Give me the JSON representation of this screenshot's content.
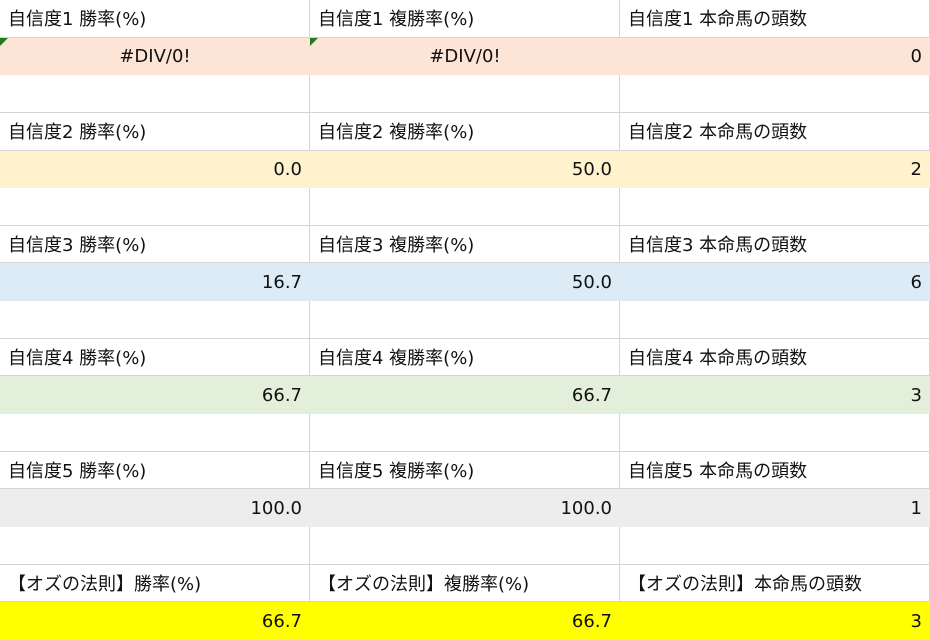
{
  "colors": {
    "row1": "#fce4d6",
    "row2": "#fff2cc",
    "row3": "#ddebf7",
    "row4": "#e2efda",
    "row5": "#ededed",
    "odds": "#ffff00",
    "error_marker": "#1e7b1e"
  },
  "groups": [
    {
      "headers": [
        "自信度1 勝率(%)",
        "自信度1 複勝率(%)",
        "自信度1 本命馬の頭数"
      ],
      "values": [
        "#DIV/0!",
        "#DIV/0!",
        "0"
      ],
      "error": [
        true,
        true,
        false
      ],
      "color_key": "row1"
    },
    {
      "headers": [
        "自信度2 勝率(%)",
        "自信度2 複勝率(%)",
        "自信度2 本命馬の頭数"
      ],
      "values": [
        "0.0",
        "50.0",
        "2"
      ],
      "error": [
        false,
        false,
        false
      ],
      "color_key": "row2"
    },
    {
      "headers": [
        "自信度3 勝率(%)",
        "自信度3 複勝率(%)",
        "自信度3 本命馬の頭数"
      ],
      "values": [
        "16.7",
        "50.0",
        "6"
      ],
      "error": [
        false,
        false,
        false
      ],
      "color_key": "row3"
    },
    {
      "headers": [
        "自信度4 勝率(%)",
        "自信度4 複勝率(%)",
        "自信度4 本命馬の頭数"
      ],
      "values": [
        "66.7",
        "66.7",
        "3"
      ],
      "error": [
        false,
        false,
        false
      ],
      "color_key": "row4"
    },
    {
      "headers": [
        "自信度5 勝率(%)",
        "自信度5 複勝率(%)",
        "自信度5 本命馬の頭数"
      ],
      "values": [
        "100.0",
        "100.0",
        "1"
      ],
      "error": [
        false,
        false,
        false
      ],
      "color_key": "row5"
    },
    {
      "headers": [
        "【オズの法則】勝率(%)",
        "【オズの法則】複勝率(%)",
        "【オズの法則】本命馬の頭数"
      ],
      "values": [
        "66.7",
        "66.7",
        "3"
      ],
      "error": [
        false,
        false,
        false
      ],
      "color_key": "odds"
    }
  ]
}
